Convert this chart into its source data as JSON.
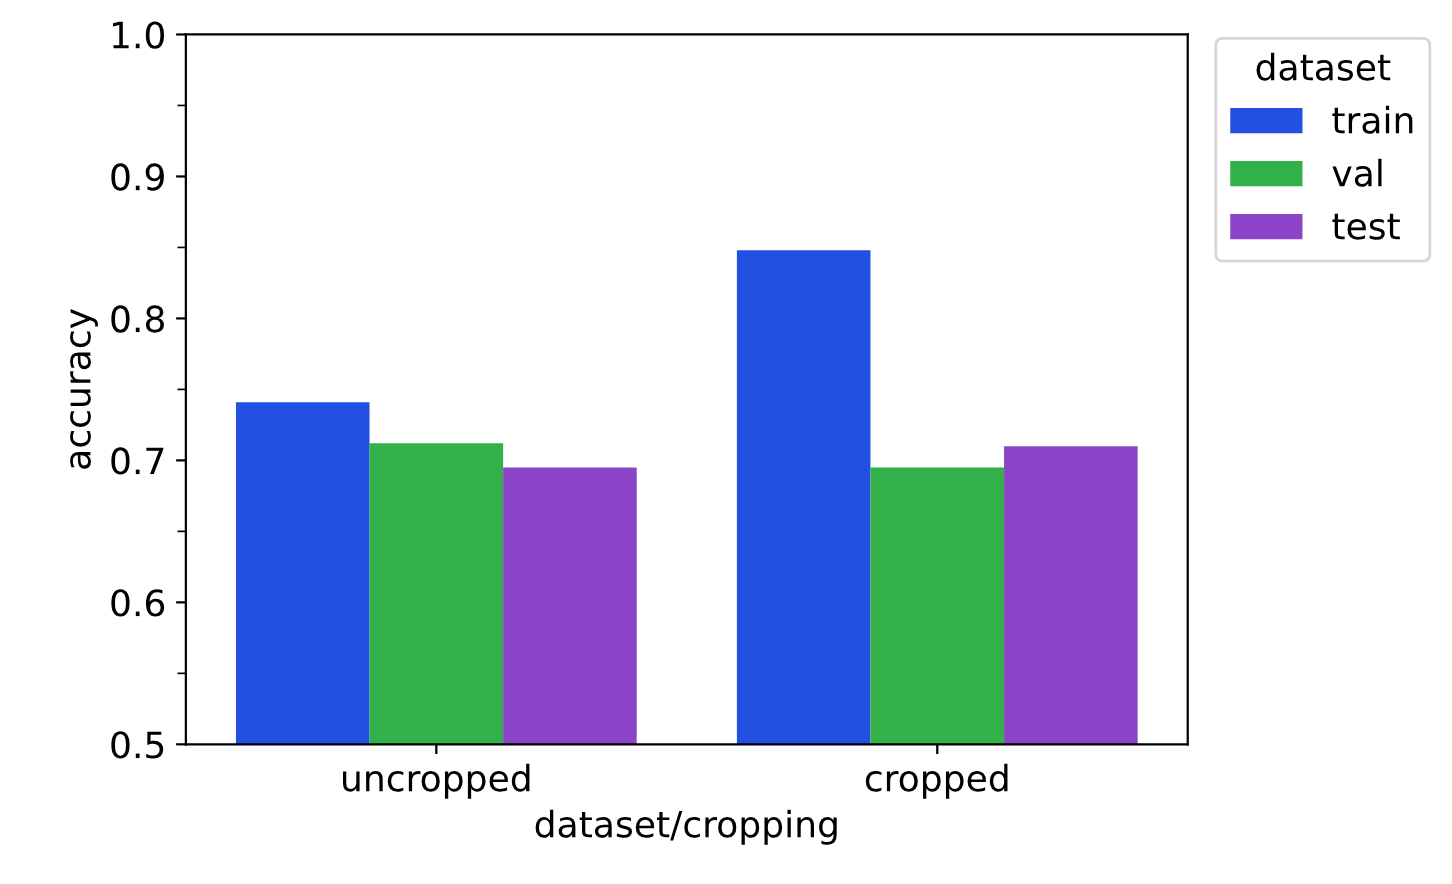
{
  "chart_data": {
    "type": "bar",
    "xlabel": "dataset/cropping",
    "ylabel": "accuracy",
    "legend_title": "dataset",
    "categories": [
      "uncropped",
      "cropped"
    ],
    "series": [
      {
        "name": "train",
        "color": "#2350e0",
        "values": [
          0.741,
          0.848
        ]
      },
      {
        "name": "val",
        "color": "#32b04a",
        "values": [
          0.712,
          0.695
        ]
      },
      {
        "name": "test",
        "color": "#8b44c8",
        "values": [
          0.695,
          0.71
        ]
      }
    ],
    "ylim": [
      0.5,
      1.0
    ],
    "yticks": [
      0.5,
      0.6,
      0.7,
      0.8,
      0.9,
      {
        "value": 1,
        "label": "1.0"
      }
    ],
    "grid": false,
    "legend": "top right"
  }
}
